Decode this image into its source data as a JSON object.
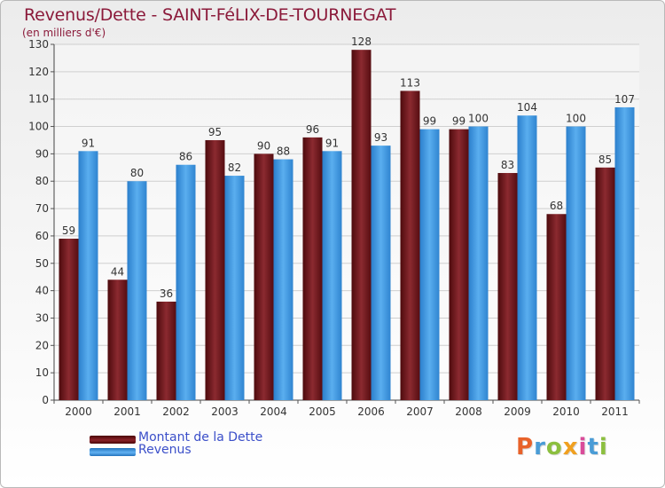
{
  "chart_data": {
    "type": "bar",
    "title": "Revenus/Dette - SAINT-FéLIX-DE-TOURNEGAT",
    "subtitle": "(en milliers d'€)",
    "categories": [
      "2000",
      "2001",
      "2002",
      "2003",
      "2004",
      "2005",
      "2006",
      "2007",
      "2008",
      "2009",
      "2010",
      "2011"
    ],
    "series": [
      {
        "name": "Montant de la Dette",
        "color": "#7a1a1f",
        "values": [
          59,
          44,
          36,
          95,
          90,
          96,
          128,
          113,
          99,
          83,
          68,
          85
        ]
      },
      {
        "name": "Revenus",
        "color": "#3d94e0",
        "values": [
          91,
          80,
          86,
          82,
          88,
          91,
          93,
          99,
          100,
          104,
          100,
          107
        ]
      }
    ],
    "ylim": [
      0,
      130
    ],
    "yticks": [
      0,
      10,
      20,
      30,
      40,
      50,
      60,
      70,
      80,
      90,
      100,
      110,
      120,
      130
    ],
    "grid": true,
    "legend_position": "bottom-left"
  },
  "logo_text": "Proxiti",
  "logo_colors": [
    "#e8622a",
    "#4a9cd6",
    "#8cbf3f",
    "#f0a020",
    "#d94c9a",
    "#4a9cd6",
    "#8cbf3f"
  ]
}
